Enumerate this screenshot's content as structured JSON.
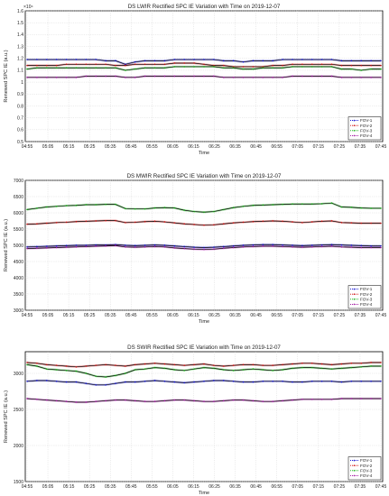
{
  "chart_data": [
    {
      "type": "line",
      "title": "DS LWIR Rectified SPC IE Variation with Time on 2019-12-07",
      "xlabel": "Time",
      "ylabel": "Renewed SPC IE (a.u.)",
      "y_exponent_label": "×10⁴",
      "x_ticks": [
        "04:55",
        "05:05",
        "05:15",
        "05:25",
        "05:35",
        "05:45",
        "05:55",
        "06:05",
        "06:15",
        "06:25",
        "06:35",
        "06:45",
        "06:55",
        "07:05",
        "07:15",
        "07:25",
        "07:35",
        "07:45"
      ],
      "y_ticks": [
        "0.5",
        "0.6",
        "0.7",
        "0.8",
        "0.9",
        "1",
        "1.1",
        "1.2",
        "1.3",
        "1.4",
        "1.5",
        "1.6"
      ],
      "ylim": [
        0.5,
        1.6
      ],
      "grid": true,
      "legend_position": "bottom-right",
      "series": [
        {
          "name": "FOV-1",
          "color": "#0000cc",
          "values": [
            1.19,
            1.19,
            1.19,
            1.19,
            1.19,
            1.19,
            1.19,
            1.19,
            1.18,
            1.18,
            1.15,
            1.17,
            1.18,
            1.18,
            1.18,
            1.19,
            1.19,
            1.19,
            1.19,
            1.19,
            1.18,
            1.18,
            1.17,
            1.18,
            1.18,
            1.18,
            1.19,
            1.19,
            1.19,
            1.19,
            1.19,
            1.19,
            1.18,
            1.18,
            1.18,
            1.18,
            1.18
          ]
        },
        {
          "name": "FOV-2",
          "color": "#cc0000",
          "values": [
            1.14,
            1.14,
            1.14,
            1.14,
            1.15,
            1.15,
            1.15,
            1.15,
            1.15,
            1.14,
            1.14,
            1.15,
            1.15,
            1.15,
            1.15,
            1.16,
            1.16,
            1.16,
            1.15,
            1.14,
            1.14,
            1.13,
            1.13,
            1.13,
            1.13,
            1.14,
            1.14,
            1.15,
            1.15,
            1.15,
            1.15,
            1.15,
            1.14,
            1.14,
            1.14,
            1.14,
            1.14
          ]
        },
        {
          "name": "FOV-3",
          "color": "#00aa00",
          "values": [
            1.11,
            1.12,
            1.12,
            1.12,
            1.12,
            1.12,
            1.12,
            1.12,
            1.12,
            1.12,
            1.1,
            1.11,
            1.12,
            1.12,
            1.12,
            1.13,
            1.13,
            1.13,
            1.13,
            1.13,
            1.12,
            1.12,
            1.11,
            1.11,
            1.12,
            1.12,
            1.12,
            1.13,
            1.13,
            1.13,
            1.13,
            1.13,
            1.11,
            1.11,
            1.1,
            1.11,
            1.11
          ]
        },
        {
          "name": "FOV-4",
          "color": "#990099",
          "values": [
            1.04,
            1.04,
            1.04,
            1.04,
            1.04,
            1.04,
            1.05,
            1.05,
            1.05,
            1.05,
            1.04,
            1.04,
            1.05,
            1.05,
            1.05,
            1.05,
            1.05,
            1.05,
            1.05,
            1.05,
            1.04,
            1.04,
            1.04,
            1.04,
            1.04,
            1.04,
            1.04,
            1.05,
            1.05,
            1.05,
            1.05,
            1.05,
            1.04,
            1.04,
            1.04,
            1.04,
            1.04
          ]
        }
      ]
    },
    {
      "type": "line",
      "title": "DS MWIR Rectified SPC IE Variation with Time on 2019-12-07",
      "xlabel": "Time",
      "ylabel": "Renewed SPC IE (a.u.)",
      "x_ticks": [
        "04:55",
        "05:05",
        "05:15",
        "05:25",
        "05:35",
        "05:45",
        "05:55",
        "06:05",
        "06:15",
        "06:25",
        "06:35",
        "06:45",
        "06:55",
        "07:05",
        "07:15",
        "07:25",
        "07:35",
        "07:45"
      ],
      "y_ticks": [
        "3000",
        "3500",
        "4000",
        "4500",
        "5000",
        "5500",
        "6000",
        "6500",
        "7000"
      ],
      "ylim": [
        3000,
        7000
      ],
      "grid": true,
      "legend_position": "bottom-right",
      "series": [
        {
          "name": "FOV-1",
          "color": "#0000cc",
          "values": [
            4950,
            4960,
            4970,
            4980,
            4990,
            5000,
            5000,
            5010,
            5010,
            5020,
            5000,
            4990,
            5000,
            5010,
            5000,
            4980,
            4960,
            4940,
            4930,
            4940,
            4960,
            4980,
            5000,
            5010,
            5020,
            5020,
            5010,
            5000,
            4990,
            5000,
            5010,
            5020,
            5010,
            5000,
            4990,
            4980,
            4980
          ]
        },
        {
          "name": "FOV-2",
          "color": "#cc0000",
          "values": [
            5650,
            5660,
            5680,
            5700,
            5710,
            5730,
            5740,
            5750,
            5760,
            5760,
            5700,
            5710,
            5730,
            5740,
            5720,
            5690,
            5660,
            5640,
            5620,
            5630,
            5660,
            5690,
            5710,
            5730,
            5740,
            5750,
            5740,
            5720,
            5700,
            5720,
            5740,
            5750,
            5700,
            5690,
            5680,
            5680,
            5680
          ]
        },
        {
          "name": "FOV-3",
          "color": "#00aa00",
          "values": [
            6100,
            6140,
            6180,
            6200,
            6220,
            6230,
            6250,
            6250,
            6260,
            6260,
            6130,
            6120,
            6120,
            6150,
            6160,
            6150,
            6080,
            6040,
            6020,
            6040,
            6100,
            6160,
            6200,
            6230,
            6240,
            6250,
            6260,
            6270,
            6270,
            6270,
            6280,
            6300,
            6180,
            6170,
            6150,
            6140,
            6140
          ]
        },
        {
          "name": "FOV-4",
          "color": "#990099",
          "values": [
            4900,
            4910,
            4920,
            4930,
            4940,
            4950,
            4960,
            4970,
            4980,
            4990,
            4950,
            4940,
            4950,
            4960,
            4950,
            4920,
            4900,
            4880,
            4870,
            4880,
            4910,
            4930,
            4950,
            4960,
            4970,
            4970,
            4960,
            4950,
            4940,
            4950,
            4960,
            4970,
            4950,
            4940,
            4930,
            4930,
            4930
          ]
        }
      ]
    },
    {
      "type": "line",
      "title": "DS SWIR Rectified SPC IE Variation with Time on 2019-12-07",
      "xlabel": "Time",
      "ylabel": "Renewed SPC IE (a.u.)",
      "x_ticks": [
        "04:55",
        "05:05",
        "05:15",
        "05:25",
        "05:35",
        "05:45",
        "05:55",
        "06:05",
        "06:15",
        "06:25",
        "06:35",
        "06:45",
        "06:55",
        "07:05",
        "07:15",
        "07:25",
        "07:35",
        "07:45"
      ],
      "y_ticks": [
        "1500",
        "2000",
        "2500",
        "3000"
      ],
      "ylim": [
        1500,
        3300
      ],
      "grid": true,
      "legend_position": "bottom-right",
      "series": [
        {
          "name": "FOV-1",
          "color": "#0000cc",
          "values": [
            2890,
            2900,
            2900,
            2890,
            2880,
            2880,
            2860,
            2840,
            2840,
            2860,
            2880,
            2880,
            2890,
            2900,
            2890,
            2880,
            2870,
            2880,
            2890,
            2900,
            2900,
            2890,
            2880,
            2880,
            2890,
            2890,
            2890,
            2880,
            2880,
            2890,
            2890,
            2890,
            2880,
            2890,
            2890,
            2890,
            2890
          ]
        },
        {
          "name": "FOV-2",
          "color": "#cc0000",
          "values": [
            3150,
            3140,
            3120,
            3110,
            3100,
            3090,
            3100,
            3110,
            3120,
            3110,
            3100,
            3120,
            3130,
            3140,
            3130,
            3120,
            3110,
            3120,
            3130,
            3110,
            3100,
            3110,
            3120,
            3120,
            3110,
            3110,
            3120,
            3130,
            3140,
            3140,
            3130,
            3120,
            3130,
            3140,
            3140,
            3150,
            3150
          ]
        },
        {
          "name": "FOV-3",
          "color": "#00aa00",
          "values": [
            3120,
            3100,
            3060,
            3050,
            3040,
            3030,
            3000,
            2960,
            2950,
            2970,
            3000,
            3050,
            3060,
            3080,
            3070,
            3050,
            3040,
            3060,
            3080,
            3070,
            3050,
            3040,
            3050,
            3060,
            3050,
            3040,
            3050,
            3070,
            3080,
            3080,
            3070,
            3060,
            3070,
            3080,
            3090,
            3100,
            3100
          ]
        },
        {
          "name": "FOV-4",
          "color": "#990099",
          "values": [
            2650,
            2640,
            2630,
            2620,
            2610,
            2600,
            2600,
            2610,
            2620,
            2630,
            2630,
            2620,
            2610,
            2610,
            2620,
            2630,
            2630,
            2620,
            2610,
            2610,
            2620,
            2630,
            2630,
            2620,
            2610,
            2610,
            2620,
            2630,
            2640,
            2640,
            2640,
            2640,
            2650,
            2650,
            2650,
            2650,
            2650
          ]
        }
      ]
    }
  ]
}
